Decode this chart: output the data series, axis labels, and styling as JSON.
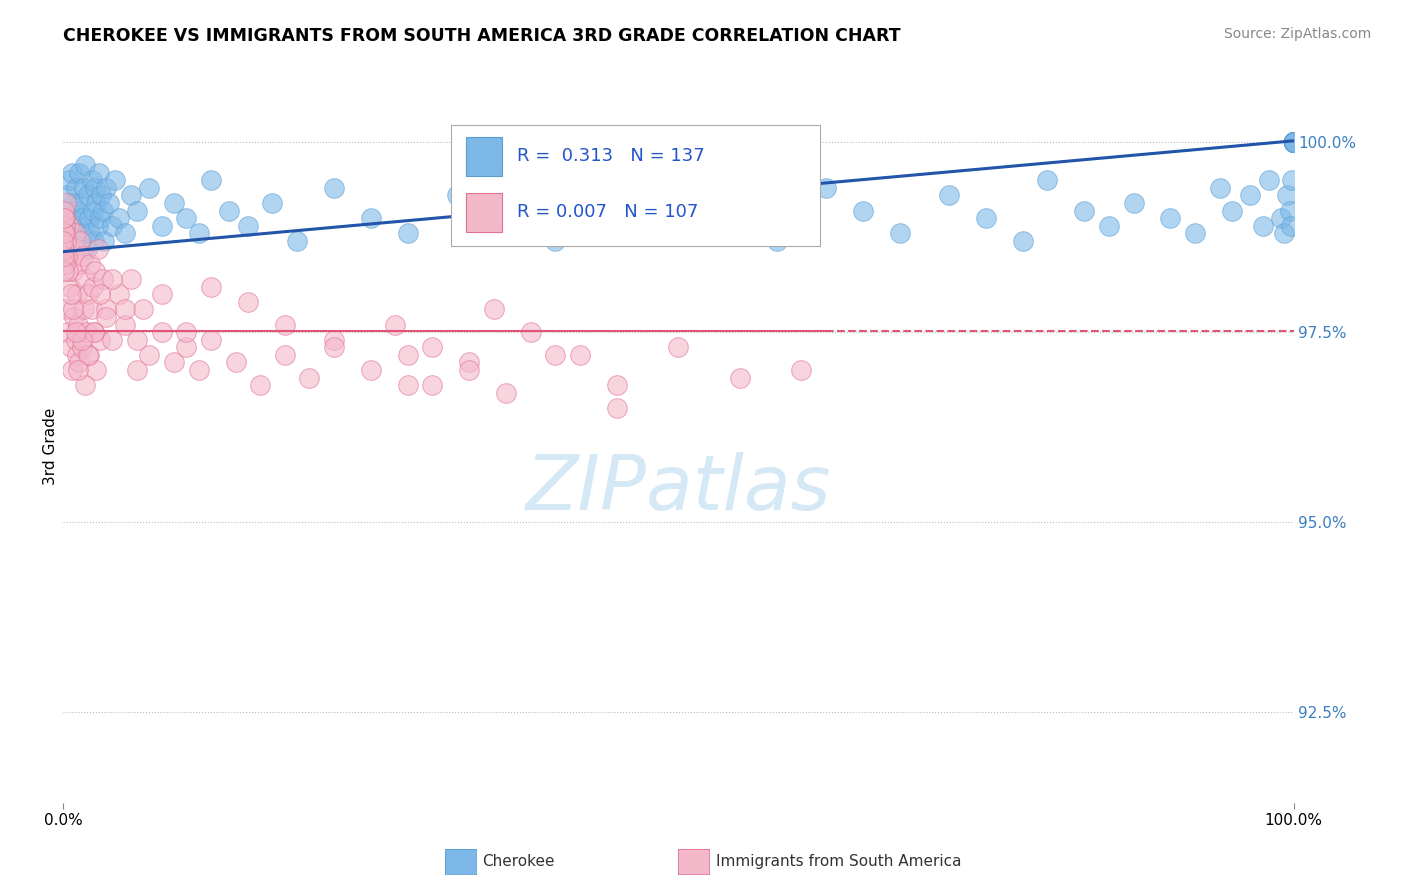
{
  "title": "CHEROKEE VS IMMIGRANTS FROM SOUTH AMERICA 3RD GRADE CORRELATION CHART",
  "source": "Source: ZipAtlas.com",
  "ylabel": "3rd Grade",
  "xmin": 0.0,
  "xmax": 100.0,
  "ymin": 91.3,
  "ymax": 100.7,
  "blue_color": "#7db8e8",
  "blue_edge": "#5a9fd4",
  "pink_color": "#f4b8cb",
  "pink_edge": "#e07090",
  "trendline_blue": "#2255aa",
  "trendline_pink": "#e05575",
  "watermark_color": "#d5e8f5",
  "blue_scatter_x": [
    0.2,
    0.3,
    0.4,
    0.5,
    0.6,
    0.7,
    0.8,
    0.9,
    1.0,
    1.1,
    1.2,
    1.3,
    1.4,
    1.5,
    1.6,
    1.7,
    1.8,
    1.9,
    2.0,
    2.1,
    2.2,
    2.3,
    2.4,
    2.5,
    2.6,
    2.7,
    2.8,
    2.9,
    3.0,
    3.1,
    3.2,
    3.3,
    3.5,
    3.7,
    4.0,
    4.2,
    4.5,
    5.0,
    5.5,
    6.0,
    7.0,
    8.0,
    9.0,
    10.0,
    11.0,
    12.0,
    13.5,
    15.0,
    17.0,
    19.0,
    22.0,
    25.0,
    28.0,
    32.0,
    35.0,
    40.0,
    43.0,
    47.0,
    50.0,
    55.0,
    58.0,
    62.0,
    65.0,
    68.0,
    72.0,
    75.0,
    78.0,
    80.0,
    83.0,
    85.0,
    87.0,
    90.0,
    92.0,
    94.0,
    95.0,
    96.5,
    97.5,
    98.0,
    99.0,
    99.2,
    99.5,
    99.7,
    99.8,
    99.9,
    100.0,
    100.0,
    100.0,
    100.0,
    100.0,
    100.0,
    100.0,
    100.0,
    100.0,
    100.0,
    100.0,
    100.0,
    100.0,
    100.0,
    100.0,
    100.0,
    100.0,
    100.0,
    100.0,
    100.0,
    100.0,
    100.0,
    100.0,
    100.0,
    100.0,
    100.0,
    100.0,
    100.0,
    100.0,
    100.0,
    100.0,
    100.0,
    100.0,
    100.0,
    100.0,
    100.0,
    100.0,
    100.0,
    100.0,
    100.0,
    100.0,
    100.0,
    100.0,
    100.0,
    100.0,
    100.0,
    100.0,
    100.0,
    100.0,
    100.0,
    100.0,
    100.0,
    100.0
  ],
  "blue_scatter_y": [
    99.1,
    99.3,
    98.8,
    99.5,
    99.0,
    99.6,
    99.2,
    98.7,
    99.4,
    99.1,
    98.9,
    99.6,
    99.2,
    99.0,
    98.8,
    99.4,
    99.7,
    98.6,
    99.3,
    99.0,
    98.8,
    99.5,
    99.1,
    98.7,
    99.4,
    99.2,
    98.9,
    99.6,
    99.0,
    99.3,
    99.1,
    98.7,
    99.4,
    99.2,
    98.9,
    99.5,
    99.0,
    98.8,
    99.3,
    99.1,
    99.4,
    98.9,
    99.2,
    99.0,
    98.8,
    99.5,
    99.1,
    98.9,
    99.2,
    98.7,
    99.4,
    99.0,
    98.8,
    99.3,
    99.1,
    98.7,
    99.5,
    99.0,
    98.9,
    99.2,
    98.7,
    99.4,
    99.1,
    98.8,
    99.3,
    99.0,
    98.7,
    99.5,
    99.1,
    98.9,
    99.2,
    99.0,
    98.8,
    99.4,
    99.1,
    99.3,
    98.9,
    99.5,
    99.0,
    98.8,
    99.3,
    99.1,
    98.9,
    99.5,
    100.0,
    100.0,
    100.0,
    100.0,
    100.0,
    100.0,
    100.0,
    100.0,
    100.0,
    100.0,
    100.0,
    100.0,
    100.0,
    100.0,
    100.0,
    100.0,
    100.0,
    100.0,
    100.0,
    100.0,
    100.0,
    100.0,
    100.0,
    100.0,
    100.0,
    100.0,
    100.0,
    100.0,
    100.0,
    100.0,
    100.0,
    100.0,
    100.0,
    100.0,
    100.0,
    100.0,
    100.0,
    100.0,
    100.0,
    100.0,
    100.0,
    100.0,
    100.0,
    100.0,
    100.0,
    100.0,
    100.0,
    100.0,
    100.0,
    100.0,
    100.0,
    100.0,
    100.0
  ],
  "pink_scatter_x": [
    0.1,
    0.15,
    0.2,
    0.25,
    0.3,
    0.4,
    0.5,
    0.55,
    0.6,
    0.7,
    0.75,
    0.8,
    0.9,
    0.95,
    1.0,
    1.05,
    1.1,
    1.15,
    1.2,
    1.25,
    1.3,
    1.4,
    1.5,
    1.6,
    1.7,
    1.8,
    1.9,
    2.0,
    2.1,
    2.2,
    2.3,
    2.4,
    2.5,
    2.6,
    2.7,
    2.8,
    3.0,
    3.2,
    3.5,
    4.0,
    4.5,
    5.0,
    5.5,
    6.0,
    6.5,
    7.0,
    8.0,
    9.0,
    10.0,
    11.0,
    12.0,
    14.0,
    16.0,
    18.0,
    20.0,
    22.0,
    25.0,
    28.0,
    30.0,
    33.0,
    36.0,
    40.0,
    45.0,
    50.0,
    55.0,
    60.0,
    38.0,
    42.0,
    27.0,
    30.0,
    35.0,
    45.0,
    33.0,
    28.0,
    22.0,
    18.0,
    15.0,
    12.0,
    10.0,
    8.0,
    6.0,
    5.0,
    4.0,
    3.5,
    3.0,
    2.5,
    2.0,
    1.8,
    1.5,
    1.2,
    1.0,
    0.8,
    0.6,
    0.4,
    0.3,
    0.2,
    0.15,
    0.12,
    0.1,
    0.08,
    0.07,
    0.06,
    0.05,
    0.04,
    0.03,
    0.02,
    0.015
  ],
  "pink_scatter_y": [
    99.0,
    98.5,
    99.2,
    97.8,
    98.7,
    97.5,
    98.9,
    98.1,
    97.3,
    98.5,
    97.0,
    98.3,
    97.7,
    98.8,
    97.4,
    98.6,
    97.2,
    98.0,
    97.6,
    98.4,
    97.1,
    98.7,
    97.3,
    98.5,
    97.8,
    98.2,
    97.5,
    98.0,
    97.2,
    98.4,
    97.8,
    98.1,
    97.5,
    98.3,
    97.0,
    98.6,
    97.4,
    98.2,
    97.8,
    97.4,
    98.0,
    97.6,
    98.2,
    97.0,
    97.8,
    97.2,
    97.5,
    97.1,
    97.3,
    97.0,
    97.4,
    97.1,
    96.8,
    97.2,
    96.9,
    97.4,
    97.0,
    97.2,
    96.8,
    97.1,
    96.7,
    97.2,
    96.8,
    97.3,
    96.9,
    97.0,
    97.5,
    97.2,
    97.6,
    97.3,
    97.8,
    96.5,
    97.0,
    96.8,
    97.3,
    97.6,
    97.9,
    98.1,
    97.5,
    98.0,
    97.4,
    97.8,
    98.2,
    97.7,
    98.0,
    97.5,
    97.2,
    96.8,
    97.4,
    97.0,
    97.5,
    97.8,
    98.0,
    98.3,
    98.5,
    98.7,
    98.9,
    98.4,
    98.8,
    99.0,
    98.6,
    99.1,
    98.3,
    98.8,
    98.5,
    99.0,
    98.7
  ],
  "blue_trend_x0": 0.0,
  "blue_trend_y0": 98.56,
  "blue_trend_x1": 100.0,
  "blue_trend_y1": 100.02,
  "pink_trend_y": 97.52,
  "pink_solid_end": 62.0,
  "yticks": [
    92.5,
    95.0,
    97.5,
    100.0
  ],
  "legend_texts": [
    "R =  0.313   N = 137",
    "R = 0.007   N = 107"
  ]
}
